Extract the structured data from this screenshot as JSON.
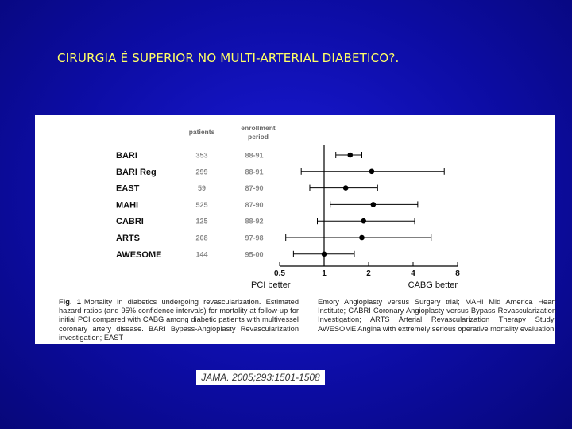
{
  "slide": {
    "title": "CIRURGIA É SUPERIOR NO MULTI-ARTERIAL DIABETICO?.",
    "citation": "JAMA. 2005;293:1501-1508"
  },
  "chart_data": {
    "type": "forest",
    "column_headers": {
      "patients": "patients",
      "enrollment_line1": "enrollment",
      "enrollment_line2": "period"
    },
    "scale": "log2",
    "xlim": [
      0.5,
      8
    ],
    "reference_line": 1,
    "x_ticks": [
      "0.5",
      "1",
      "2",
      "4",
      "8"
    ],
    "x_tick_values": [
      0.5,
      1,
      2,
      4,
      8
    ],
    "left_label": "PCI better",
    "right_label": "CABG better",
    "studies": [
      {
        "name": "BARI",
        "patients": "353",
        "period": "88-91",
        "hr": 1.5,
        "ci": [
          1.2,
          1.8
        ]
      },
      {
        "name": "BARI Reg",
        "patients": "299",
        "period": "88-91",
        "hr": 2.1,
        "ci": [
          0.7,
          6.5
        ]
      },
      {
        "name": "EAST",
        "patients": "59",
        "period": "87-90",
        "hr": 1.4,
        "ci": [
          0.8,
          2.3
        ]
      },
      {
        "name": "MAHI",
        "patients": "525",
        "period": "87-90",
        "hr": 2.15,
        "ci": [
          1.1,
          4.3
        ]
      },
      {
        "name": "CABRI",
        "patients": "125",
        "period": "88-92",
        "hr": 1.85,
        "ci": [
          0.9,
          4.1
        ]
      },
      {
        "name": "ARTS",
        "patients": "208",
        "period": "97-98",
        "hr": 1.8,
        "ci": [
          0.55,
          5.3
        ]
      },
      {
        "name": "AWESOME",
        "patients": "144",
        "period": "95-00",
        "hr": 1.0,
        "ci": [
          0.62,
          1.6
        ]
      }
    ],
    "caption_label": "Fig. 1",
    "caption_left": "Mortality in diabetics undergoing revascularization. Estimated hazard ratios (and 95% confidence intervals) for mortality at follow-up for initial PCI compared with CABG among diabetic patients with multivessel coronary artery disease. BARI Bypass-Angioplasty Revascularization investigation; EAST",
    "caption_right": "Emory Angioplasty versus Surgery trial; MAHI Mid America Heart Institute; CABRI Coronary Angioplasty versus Bypass Revascularization Investigation; ARTS Arterial Revascularization Therapy Study; AWESOME Angina with extremely serious operative mortality evaluation"
  }
}
